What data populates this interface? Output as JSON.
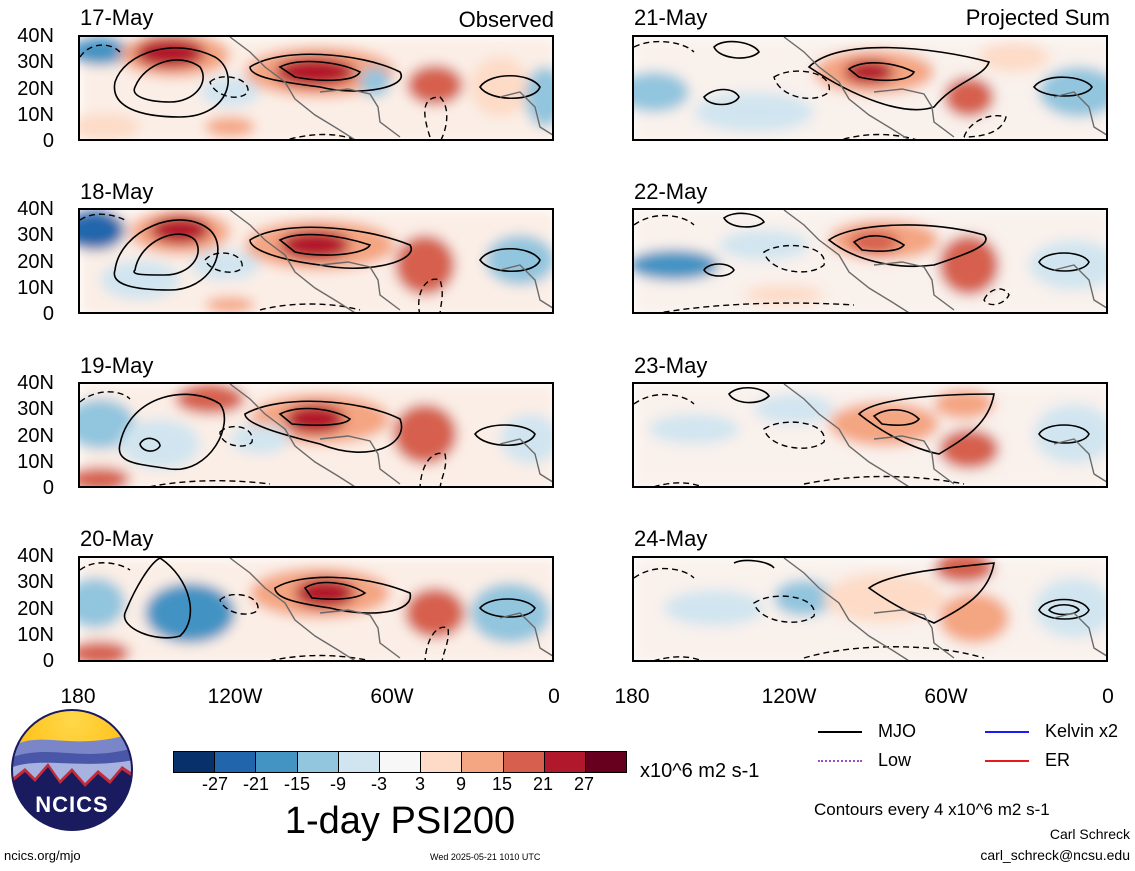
{
  "panels": [
    {
      "date": "17-May",
      "corner": "Observed"
    },
    {
      "date": "18-May",
      "corner": ""
    },
    {
      "date": "19-May",
      "corner": ""
    },
    {
      "date": "20-May",
      "corner": ""
    },
    {
      "date": "21-May",
      "corner": "Projected Sum"
    },
    {
      "date": "22-May",
      "corner": ""
    },
    {
      "date": "23-May",
      "corner": ""
    },
    {
      "date": "24-May",
      "corner": ""
    }
  ],
  "y_axis": {
    "ticks": [
      "40N",
      "30N",
      "20N",
      "10N",
      "0"
    ]
  },
  "x_axis": {
    "ticks": [
      "180",
      "120W",
      "60W",
      "0"
    ]
  },
  "colorbar": {
    "colors": [
      "#08306b",
      "#2166ac",
      "#4393c3",
      "#92c5de",
      "#d1e5f0",
      "#f7f7f7",
      "#fddbc7",
      "#f4a582",
      "#d6604d",
      "#b2182b",
      "#67001f"
    ],
    "labels": [
      "-27",
      "-21",
      "-15",
      "-9",
      "-3",
      "3",
      "9",
      "15",
      "21",
      "27"
    ],
    "units": "x10^6 m2 s-1"
  },
  "title": "1-day PSI200",
  "legend": [
    {
      "label": "MJO",
      "color": "#000000"
    },
    {
      "label": "Kelvin x2",
      "color": "#1a1aff"
    },
    {
      "label": "Low",
      "color": "#9b4dca"
    },
    {
      "label": "ER",
      "color": "#e41a1c"
    }
  ],
  "contour_note": "Contours every 4 x10^6 m2 s-1",
  "author": "Carl Schreck",
  "email": "carl_schreck@ncsu.edu",
  "site": "ncics.org/mjo",
  "timestamp": "Wed 2025-05-21 1010 UTC",
  "logo_text": "NCICS"
}
